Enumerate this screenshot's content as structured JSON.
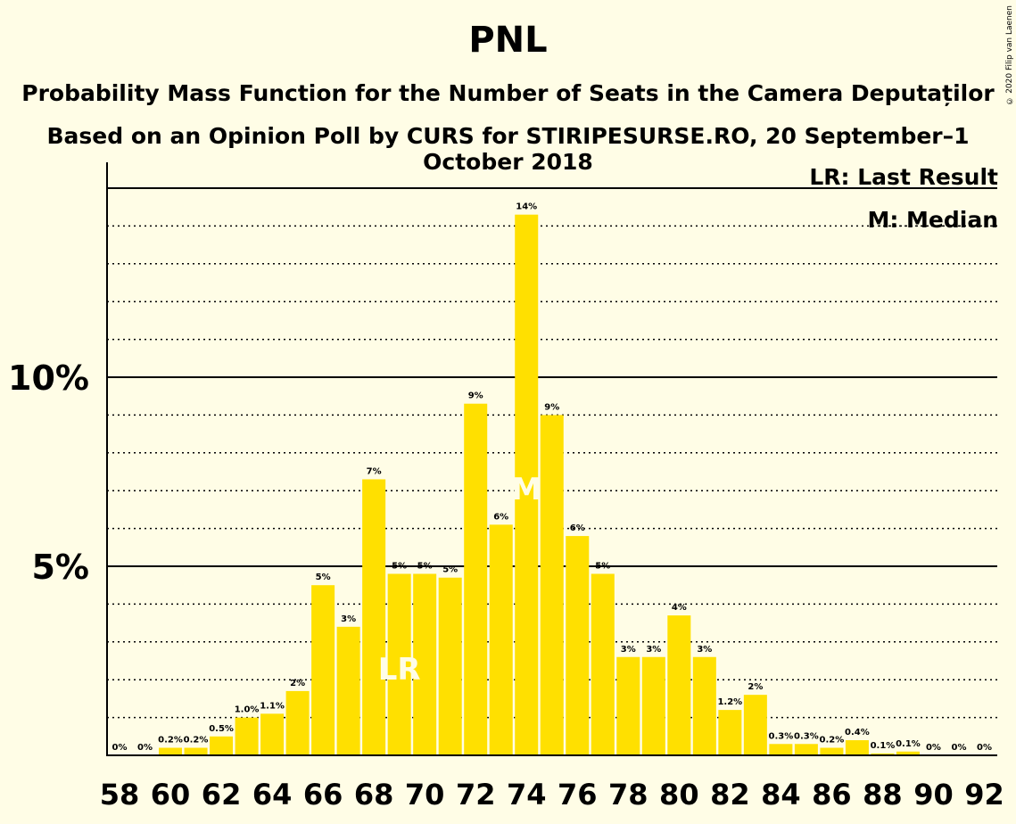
{
  "title": "PNL",
  "subtitle1": "Probability Mass Function for the Number of Seats in the Camera Deputaților",
  "subtitle2": "Based on an Opinion Poll by CURS for STIRIPESURSE.RO, 20 September–1 October 2018",
  "copyright": "© 2020 Filip van Laenen",
  "legend": {
    "last_result": "LR: Last Result",
    "median": "M: Median"
  },
  "colors": {
    "bar": "#FFE000",
    "background": "#FFFDE6",
    "marker_text": "#FFFDE6"
  },
  "chart_data": {
    "type": "bar",
    "x": [
      58,
      59,
      60,
      61,
      62,
      63,
      64,
      65,
      66,
      67,
      68,
      69,
      70,
      71,
      72,
      73,
      74,
      75,
      76,
      77,
      78,
      79,
      80,
      81,
      82,
      83,
      84,
      85,
      86,
      87,
      88,
      89,
      90,
      91,
      92
    ],
    "values": [
      0,
      0,
      0.2,
      0.2,
      0.5,
      1.0,
      1.1,
      1.7,
      4.5,
      3.4,
      7.3,
      4.8,
      4.8,
      4.7,
      9.3,
      6.1,
      14.3,
      9.0,
      5.8,
      4.8,
      2.6,
      2.6,
      3.7,
      2.6,
      1.2,
      1.6,
      0.3,
      0.3,
      0.2,
      0.4,
      0.05,
      0.1,
      0,
      0,
      0
    ],
    "labels": [
      "0%",
      "0%",
      "0.2%",
      "0.2%",
      "0.5%",
      "1.0%",
      "1.1%",
      "2%",
      "5%",
      "3%",
      "7%",
      "5%",
      "5%",
      "5%",
      "9%",
      "6%",
      "14%",
      "9%",
      "6%",
      "5%",
      "3%",
      "3%",
      "4%",
      "3%",
      "1.2%",
      "2%",
      "0.3%",
      "0.3%",
      "0.2%",
      "0.4%",
      "0.1%",
      "0.1%",
      "0%",
      "0%",
      "0%"
    ],
    "x_ticks": [
      "58",
      "60",
      "62",
      "64",
      "66",
      "68",
      "70",
      "72",
      "74",
      "76",
      "78",
      "80",
      "82",
      "84",
      "86",
      "88",
      "90",
      "92"
    ],
    "y_ticks": [
      {
        "value": 5,
        "label": "5%"
      },
      {
        "value": 10,
        "label": "10%"
      }
    ],
    "ylim": [
      0,
      15.6
    ],
    "grid": "dotted every 1%, solid at 5% and 10%",
    "markers": [
      {
        "x": 69,
        "label": "LR"
      },
      {
        "x": 74,
        "label": "M"
      }
    ],
    "median_line": 14.0
  }
}
